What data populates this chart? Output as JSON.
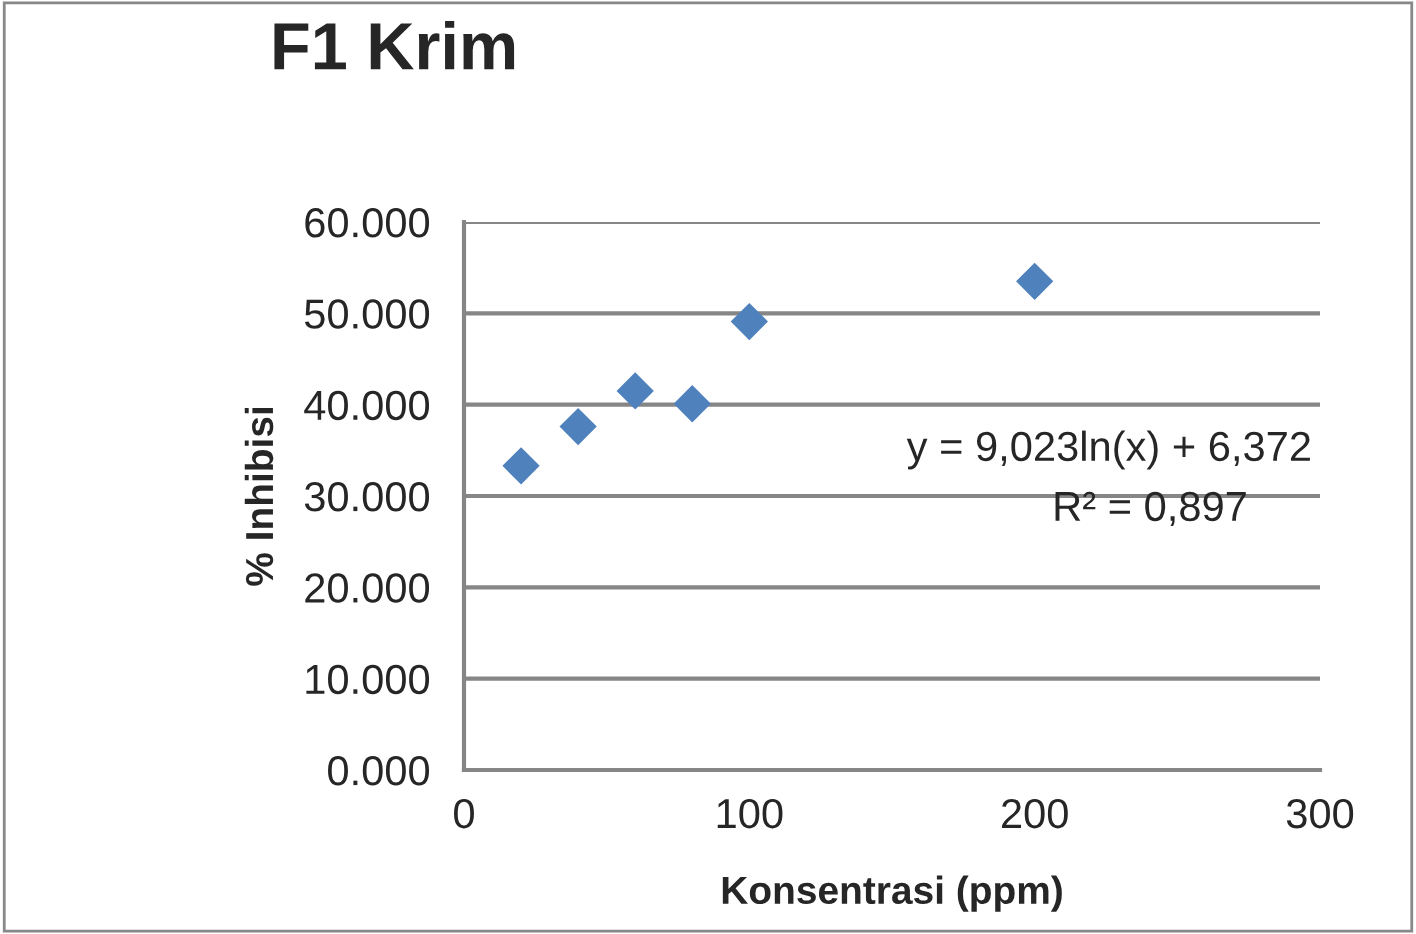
{
  "chart_data": {
    "type": "scatter",
    "title": "F1 Krim",
    "xlabel": "Konsentrasi (ppm)",
    "ylabel": "% Inhibisi",
    "x": [
      20,
      40,
      60,
      80,
      100,
      200
    ],
    "series": [
      {
        "color": "#4f81bd",
        "values": [
          33.3,
          37.6,
          41.5,
          40.1,
          49.1,
          53.5
        ]
      }
    ],
    "marker": "diamond",
    "xlim": [
      0,
      300
    ],
    "xticks": [
      0,
      100,
      200,
      300
    ],
    "ylim": [
      0,
      60
    ],
    "yticks": [
      {
        "value": 0,
        "label": "0.000"
      },
      {
        "value": 10,
        "label": "10.000"
      },
      {
        "value": 20,
        "label": "20.000"
      },
      {
        "value": 30,
        "label": "30.000"
      },
      {
        "value": 40,
        "label": "40.000"
      },
      {
        "value": 50,
        "label": "50.000"
      },
      {
        "value": 60,
        "label": "60.000"
      }
    ],
    "grid": "y",
    "legend": false,
    "annotations": [
      "y = 9,023ln(x) + 6,372",
      "R² = 0,897"
    ]
  }
}
